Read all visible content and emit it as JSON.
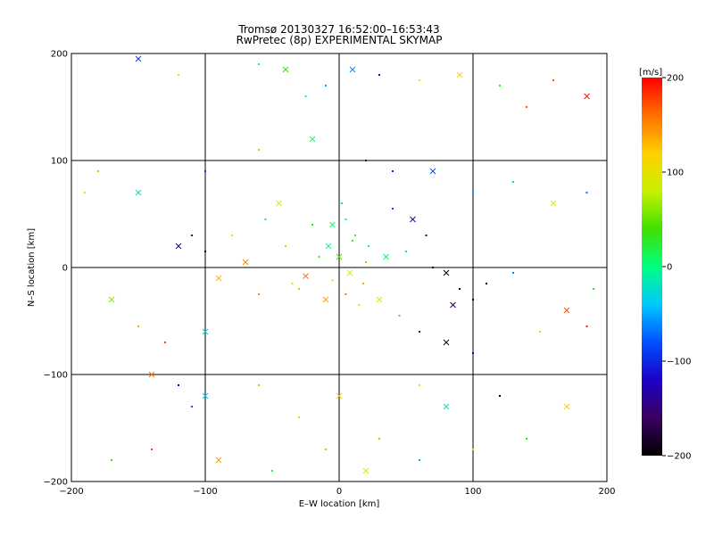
{
  "chart_data": {
    "type": "scatter",
    "title": "Tromsø 20130327 16:52:00–16:53:43",
    "subtitle": "RwPretec (8p) EXPERIMENTAL SKYMAP",
    "xlabel": "E–W location [km]",
    "ylabel": "N–S location [km]",
    "xlim": [
      -200,
      200
    ],
    "ylim": [
      -200,
      200
    ],
    "xticks": [
      -200,
      -100,
      0,
      100,
      200
    ],
    "yticks": [
      -200,
      -100,
      0,
      100,
      200
    ],
    "grid": true,
    "colorbar": {
      "label": "[m/s]",
      "range": [
        -200,
        200
      ],
      "ticks": [
        -200,
        -100,
        0,
        100,
        200
      ],
      "palette": [
        "#000000",
        "#3a0060",
        "#1c00c8",
        "#0050ff",
        "#00c8ff",
        "#00ff80",
        "#40e000",
        "#c8f000",
        "#ffd000",
        "#ff7000",
        "#ff0000"
      ]
    },
    "markers": [
      "cross",
      "dot"
    ],
    "points": [
      [
        -150,
        195,
        -90
      ],
      [
        -120,
        180,
        110
      ],
      [
        -60,
        190,
        20
      ],
      [
        -40,
        185,
        40
      ],
      [
        -25,
        160,
        0
      ],
      [
        -10,
        170,
        -50
      ],
      [
        10,
        185,
        -60
      ],
      [
        30,
        180,
        -120
      ],
      [
        60,
        175,
        80
      ],
      [
        90,
        180,
        120
      ],
      [
        120,
        170,
        30
      ],
      [
        160,
        175,
        170
      ],
      [
        185,
        160,
        190
      ],
      [
        140,
        150,
        170
      ],
      [
        -180,
        90,
        60
      ],
      [
        -150,
        70,
        -20
      ],
      [
        -100,
        90,
        -90
      ],
      [
        -60,
        110,
        130
      ],
      [
        -20,
        120,
        10
      ],
      [
        20,
        100,
        -150
      ],
      [
        40,
        90,
        -110
      ],
      [
        70,
        90,
        -80
      ],
      [
        100,
        70,
        -60
      ],
      [
        130,
        80,
        -30
      ],
      [
        160,
        60,
        90
      ],
      [
        185,
        70,
        -70
      ],
      [
        -190,
        70,
        120
      ],
      [
        -120,
        20,
        -140
      ],
      [
        -110,
        30,
        -150
      ],
      [
        -100,
        15,
        -180
      ],
      [
        -70,
        5,
        150
      ],
      [
        -40,
        20,
        70
      ],
      [
        -20,
        40,
        30
      ],
      [
        0,
        10,
        50
      ],
      [
        10,
        25,
        40
      ],
      [
        20,
        5,
        60
      ],
      [
        35,
        10,
        10
      ],
      [
        50,
        15,
        -30
      ],
      [
        70,
        0,
        -170
      ],
      [
        80,
        -5,
        -200
      ],
      [
        90,
        -20,
        -200
      ],
      [
        100,
        -30,
        -190
      ],
      [
        85,
        -35,
        -170
      ],
      [
        110,
        -15,
        -180
      ],
      [
        130,
        -5,
        -60
      ],
      [
        -170,
        -30,
        60
      ],
      [
        -150,
        -55,
        140
      ],
      [
        -130,
        -70,
        180
      ],
      [
        -100,
        -60,
        -30
      ],
      [
        -60,
        -25,
        150
      ],
      [
        -30,
        -20,
        130
      ],
      [
        -10,
        -30,
        140
      ],
      [
        5,
        -25,
        160
      ],
      [
        15,
        -35,
        120
      ],
      [
        30,
        -30,
        90
      ],
      [
        45,
        -45,
        20
      ],
      [
        60,
        -60,
        -160
      ],
      [
        80,
        -70,
        -190
      ],
      [
        100,
        -80,
        -120
      ],
      [
        150,
        -60,
        90
      ],
      [
        170,
        -40,
        170
      ],
      [
        185,
        -55,
        190
      ],
      [
        190,
        -20,
        30
      ],
      [
        -140,
        -100,
        160
      ],
      [
        -120,
        -110,
        -120
      ],
      [
        -110,
        -130,
        -80
      ],
      [
        -100,
        -120,
        -40
      ],
      [
        -60,
        -110,
        60
      ],
      [
        -30,
        -140,
        120
      ],
      [
        0,
        -120,
        110
      ],
      [
        30,
        -160,
        60
      ],
      [
        60,
        -110,
        100
      ],
      [
        80,
        -130,
        -20
      ],
      [
        120,
        -120,
        -200
      ],
      [
        140,
        -160,
        30
      ],
      [
        170,
        -130,
        110
      ],
      [
        -170,
        -180,
        40
      ],
      [
        -140,
        -170,
        180
      ],
      [
        -90,
        -180,
        140
      ],
      [
        -50,
        -190,
        20
      ],
      [
        -10,
        -170,
        60
      ],
      [
        20,
        -190,
        100
      ],
      [
        60,
        -180,
        -50
      ],
      [
        100,
        -170,
        80
      ],
      [
        -5,
        40,
        5
      ],
      [
        5,
        45,
        15
      ],
      [
        12,
        30,
        25
      ],
      [
        -8,
        20,
        0
      ],
      [
        22,
        20,
        -10
      ],
      [
        -15,
        10,
        35
      ],
      [
        8,
        -5,
        90
      ],
      [
        -5,
        -12,
        110
      ],
      [
        18,
        -15,
        140
      ],
      [
        -25,
        -8,
        160
      ],
      [
        -35,
        -15,
        120
      ],
      [
        2,
        60,
        -20
      ],
      [
        -45,
        60,
        90
      ],
      [
        -55,
        45,
        20
      ],
      [
        40,
        55,
        -90
      ],
      [
        55,
        45,
        -130
      ],
      [
        65,
        30,
        -160
      ],
      [
        -80,
        30,
        110
      ],
      [
        -90,
        -10,
        130
      ]
    ]
  }
}
